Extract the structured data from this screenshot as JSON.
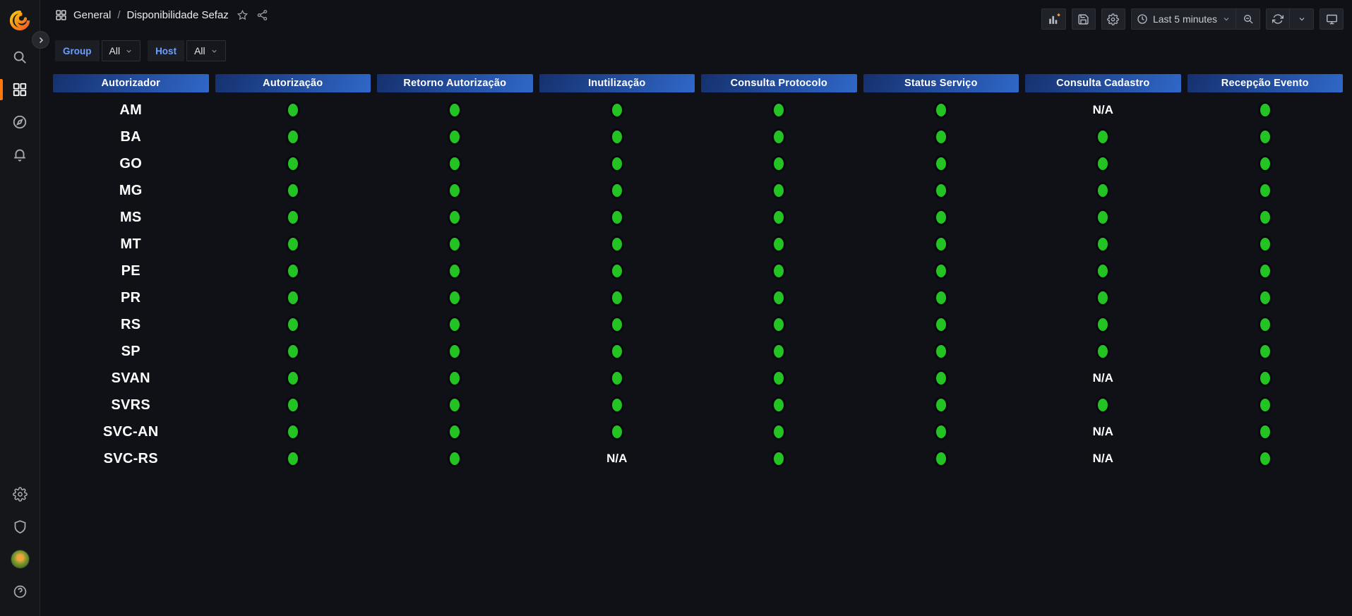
{
  "colors": {
    "status_up": "#23c323",
    "status_ring": "#07090c",
    "header_gradient_start": "#15306e",
    "header_gradient_end": "#3068c9",
    "accent_orange": "#ff780a",
    "link_blue": "#6e9fff"
  },
  "sidebar": {
    "icons_top": [
      "grafana-logo",
      "search",
      "dashboards",
      "explore",
      "alerting"
    ],
    "icons_bottom": [
      "configuration",
      "server-admin",
      "profile-avatar",
      "help"
    ]
  },
  "topbar": {
    "breadcrumb": {
      "folder": "General",
      "separator": "/",
      "title": "Disponibilidade Sefaz"
    },
    "time_range": "Last 5 minutes"
  },
  "filters": {
    "group_label": "Group",
    "group_value": "All",
    "host_label": "Host",
    "host_value": "All"
  },
  "table": {
    "columns": [
      "Autorizador",
      "Autorização",
      "Retorno Autorização",
      "Inutilização",
      "Consulta Protocolo",
      "Status Serviço",
      "Consulta Cadastro",
      "Recepção Evento"
    ],
    "na_text": "N/A",
    "rows": [
      {
        "name": "AM",
        "statuses": [
          "up",
          "up",
          "up",
          "up",
          "up",
          "na",
          "up"
        ]
      },
      {
        "name": "BA",
        "statuses": [
          "up",
          "up",
          "up",
          "up",
          "up",
          "up",
          "up"
        ]
      },
      {
        "name": "GO",
        "statuses": [
          "up",
          "up",
          "up",
          "up",
          "up",
          "up",
          "up"
        ]
      },
      {
        "name": "MG",
        "statuses": [
          "up",
          "up",
          "up",
          "up",
          "up",
          "up",
          "up"
        ]
      },
      {
        "name": "MS",
        "statuses": [
          "up",
          "up",
          "up",
          "up",
          "up",
          "up",
          "up"
        ]
      },
      {
        "name": "MT",
        "statuses": [
          "up",
          "up",
          "up",
          "up",
          "up",
          "up",
          "up"
        ]
      },
      {
        "name": "PE",
        "statuses": [
          "up",
          "up",
          "up",
          "up",
          "up",
          "up",
          "up"
        ]
      },
      {
        "name": "PR",
        "statuses": [
          "up",
          "up",
          "up",
          "up",
          "up",
          "up",
          "up"
        ]
      },
      {
        "name": "RS",
        "statuses": [
          "up",
          "up",
          "up",
          "up",
          "up",
          "up",
          "up"
        ]
      },
      {
        "name": "SP",
        "statuses": [
          "up",
          "up",
          "up",
          "up",
          "up",
          "up",
          "up"
        ]
      },
      {
        "name": "SVAN",
        "statuses": [
          "up",
          "up",
          "up",
          "up",
          "up",
          "na",
          "up"
        ]
      },
      {
        "name": "SVRS",
        "statuses": [
          "up",
          "up",
          "up",
          "up",
          "up",
          "up",
          "up"
        ]
      },
      {
        "name": "SVC-AN",
        "statuses": [
          "up",
          "up",
          "up",
          "up",
          "up",
          "na",
          "up"
        ]
      },
      {
        "name": "SVC-RS",
        "statuses": [
          "up",
          "up",
          "na",
          "up",
          "up",
          "na",
          "up"
        ]
      }
    ]
  }
}
